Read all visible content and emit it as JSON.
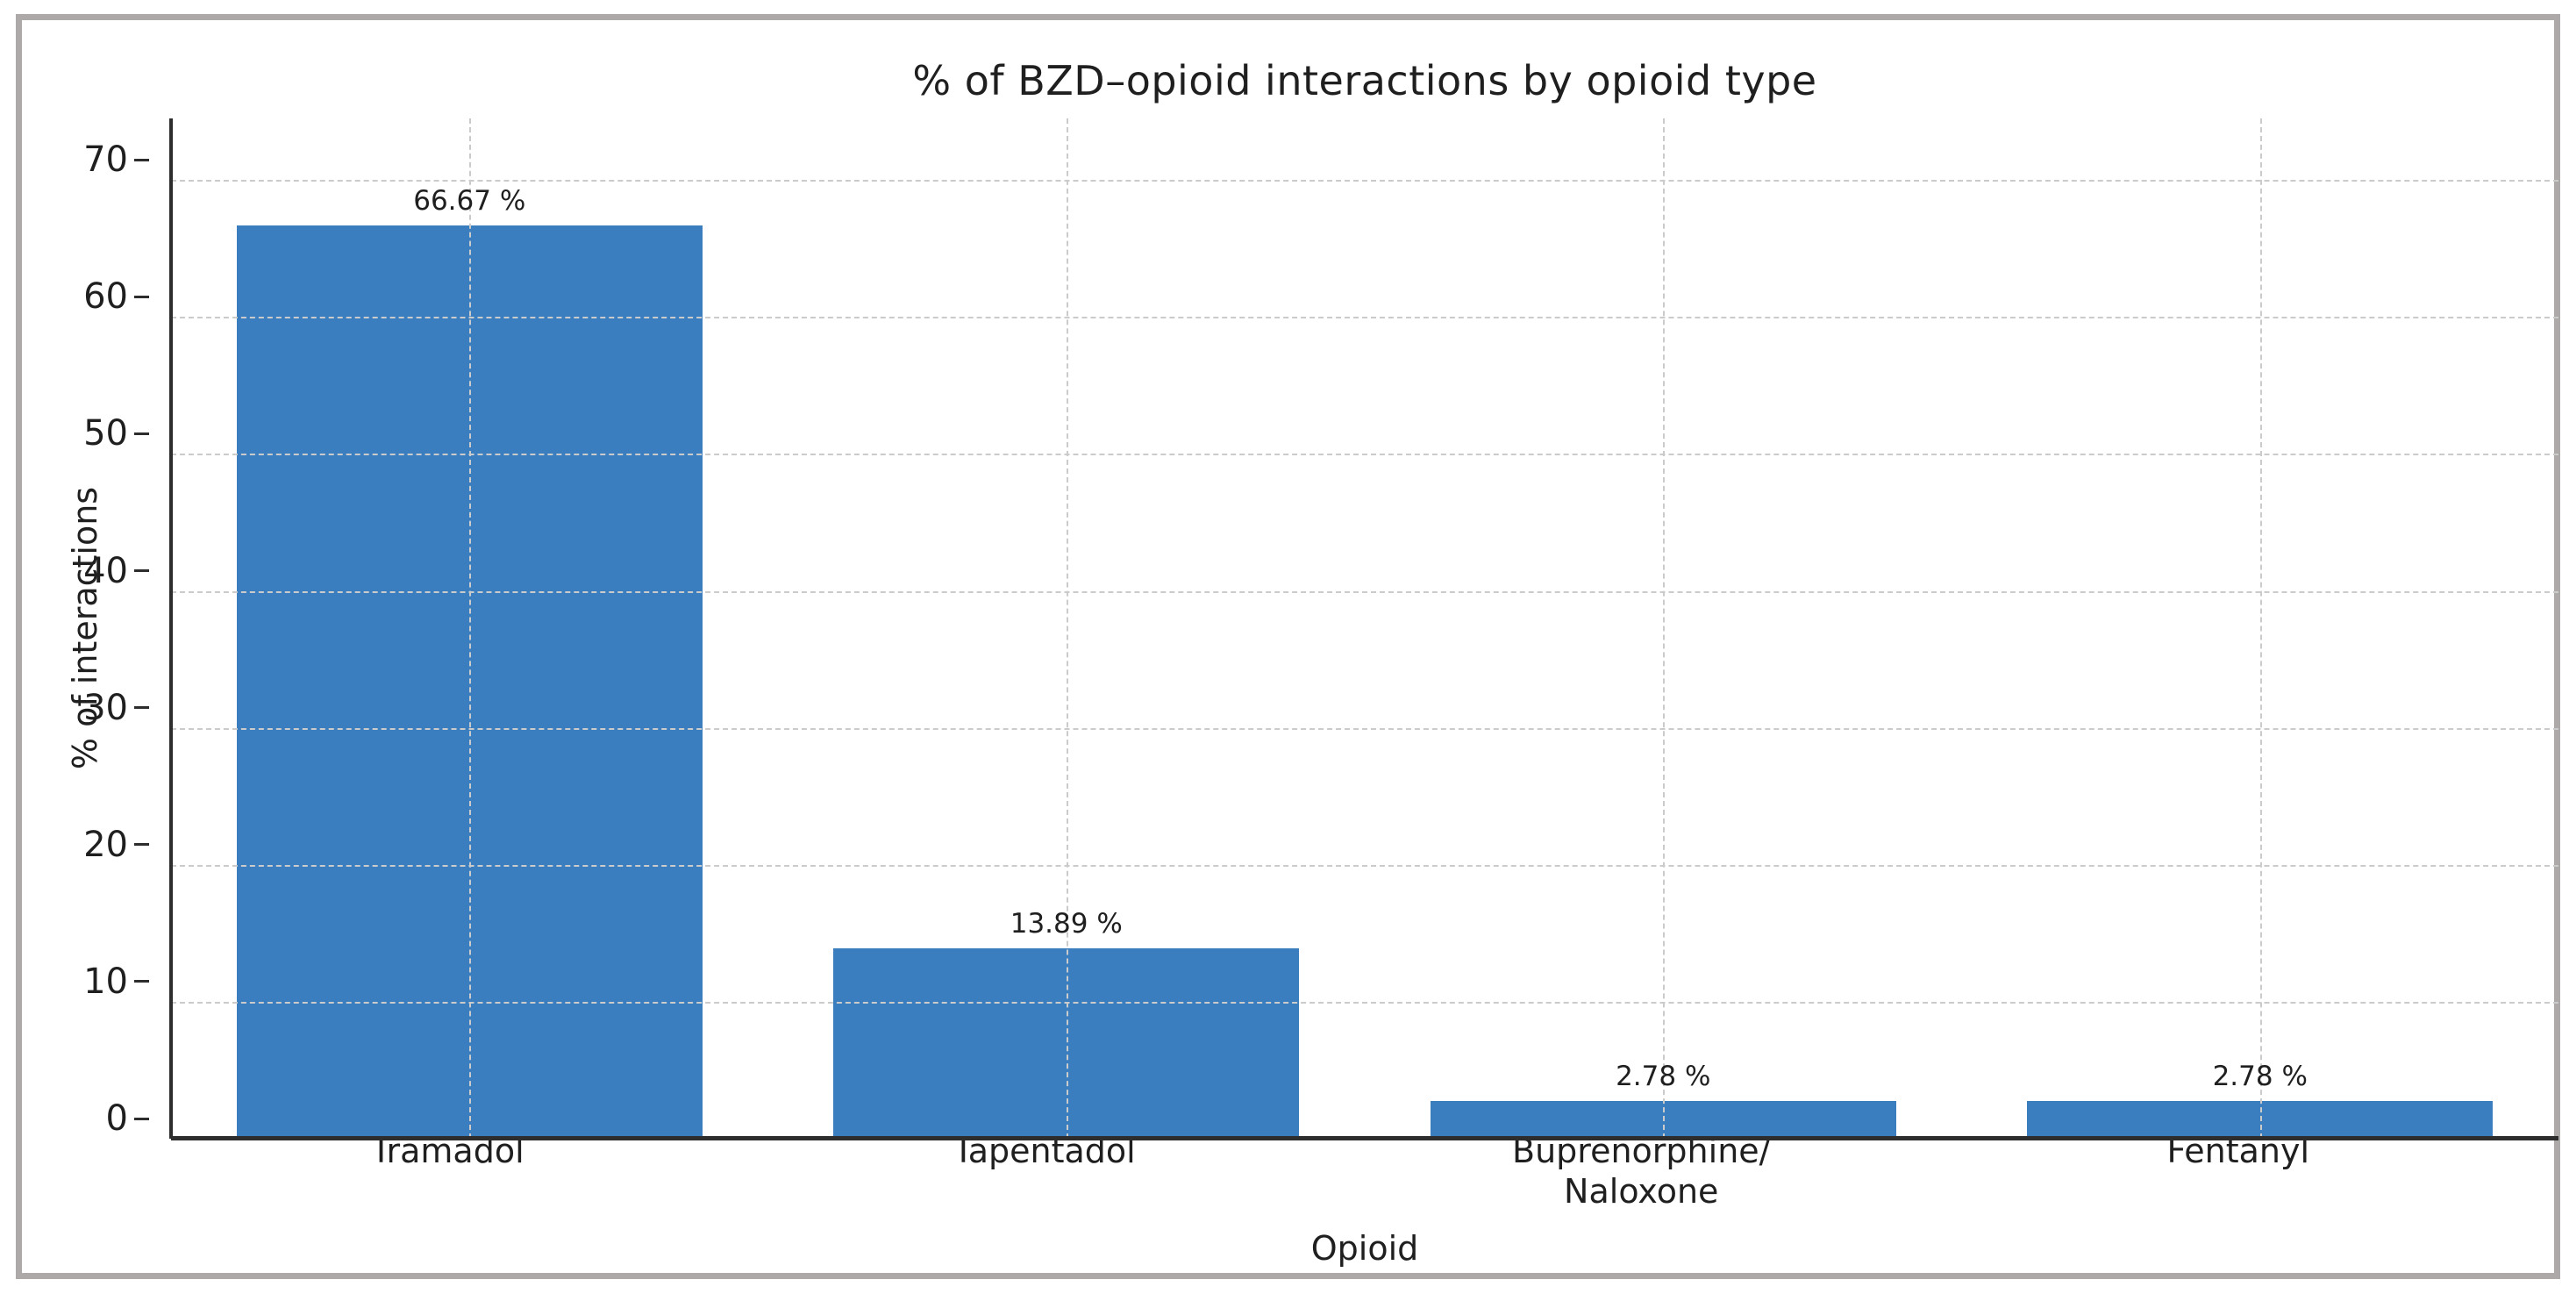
{
  "figure": {
    "background": "#FFFFFF",
    "frame_border_color": "#ADA9A9"
  },
  "chart_data": {
    "type": "bar",
    "title": "% of BZD–opioid interactions by opioid type",
    "xlabel": "Opioid",
    "ylabel": "% of interactions",
    "categories": [
      "Tramadol",
      "Tapentadol",
      "Buprenorphine/\nNaloxone",
      "Fentanyl"
    ],
    "values": [
      66.67,
      13.89,
      2.78,
      2.78
    ],
    "bar_value_labels": [
      "66.67 %",
      "13.89 %",
      "2.78 %",
      "2.78 %"
    ],
    "yticks": [
      0,
      10,
      20,
      30,
      40,
      50,
      60,
      70
    ],
    "ylim": [
      0,
      74.5
    ],
    "grid": "dashed horizontal and vertical, drawn over bars",
    "legend": "none",
    "bar_color": "#3A7EBF",
    "grid_color": "#CBCBCB",
    "spine_color": "#2D2D2D",
    "text_color": "#1F1F1F"
  }
}
